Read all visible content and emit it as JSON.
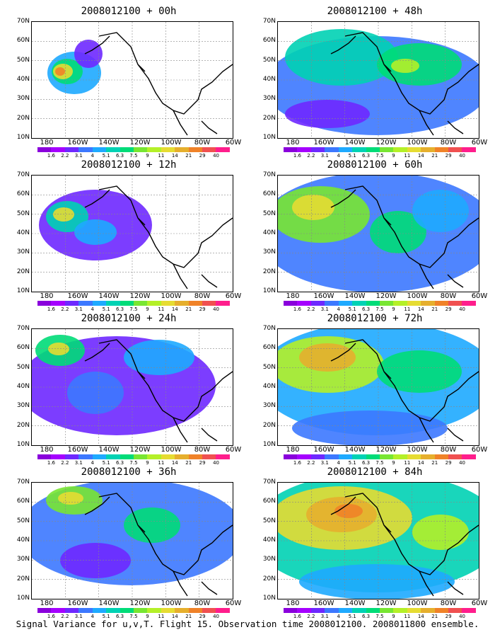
{
  "panels": [
    {
      "title": "2008012100 + 00h"
    },
    {
      "title": "2008012100 + 48h"
    },
    {
      "title": "2008012100 + 12h"
    },
    {
      "title": "2008012100 + 60h"
    },
    {
      "title": "2008012100 + 24h"
    },
    {
      "title": "2008012100 + 72h"
    },
    {
      "title": "2008012100 + 36h"
    },
    {
      "title": "2008012100 + 84h"
    }
  ],
  "lat_labels": [
    "70N",
    "60N",
    "50N",
    "40N",
    "30N",
    "20N",
    "10N"
  ],
  "lon_labels": [
    "180",
    "160W",
    "140W",
    "120W",
    "100W",
    "80W",
    "60W"
  ],
  "colorbar": {
    "labels": [
      "1.6",
      "2.2",
      "3.1",
      "4",
      "5.1",
      "6.3",
      "7.5",
      "9",
      "11",
      "14",
      "21",
      "29",
      "40"
    ],
    "colors": [
      "#8a00dc",
      "#a500ff",
      "#6e28ff",
      "#3c78ff",
      "#1eaaff",
      "#00d2b4",
      "#00dc78",
      "#78e632",
      "#b4f028",
      "#e6dc32",
      "#e6af2d",
      "#f08228",
      "#f05050",
      "#ff1e8c"
    ]
  },
  "caption": "Signal Variance for u,v,T. Flight 15. Observation time 2008012100. 2008011800 ensemble."
}
